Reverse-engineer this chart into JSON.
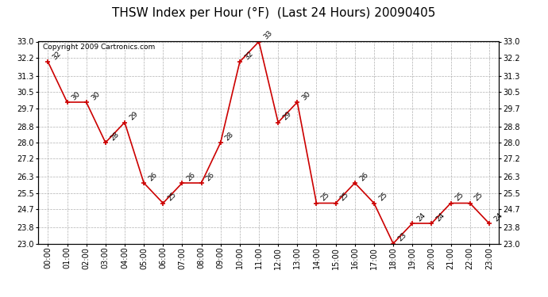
{
  "title": "THSW Index per Hour (°F)  (Last 24 Hours) 20090405",
  "copyright": "Copyright 2009 Cartronics.com",
  "hours": [
    "00:00",
    "01:00",
    "02:00",
    "03:00",
    "04:00",
    "05:00",
    "06:00",
    "07:00",
    "08:00",
    "09:00",
    "10:00",
    "11:00",
    "12:00",
    "13:00",
    "14:00",
    "15:00",
    "16:00",
    "17:00",
    "18:00",
    "19:00",
    "20:00",
    "21:00",
    "22:00",
    "23:00"
  ],
  "values": [
    32,
    30,
    30,
    28,
    29,
    26,
    25,
    26,
    26,
    28,
    32,
    33,
    29,
    30,
    25,
    25,
    26,
    25,
    23,
    24,
    24,
    25,
    25,
    24
  ],
  "ylim_min": 23.0,
  "ylim_max": 33.0,
  "yticks": [
    23.0,
    23.8,
    24.7,
    25.5,
    26.3,
    27.2,
    28.0,
    28.8,
    29.7,
    30.5,
    31.3,
    32.2,
    33.0
  ],
  "line_color": "#cc0000",
  "marker_color": "#cc0000",
  "bg_color": "#ffffff",
  "grid_color": "#b0b0b0",
  "title_fontsize": 11,
  "label_fontsize": 6.5,
  "tick_fontsize": 7,
  "copyright_fontsize": 6.5
}
